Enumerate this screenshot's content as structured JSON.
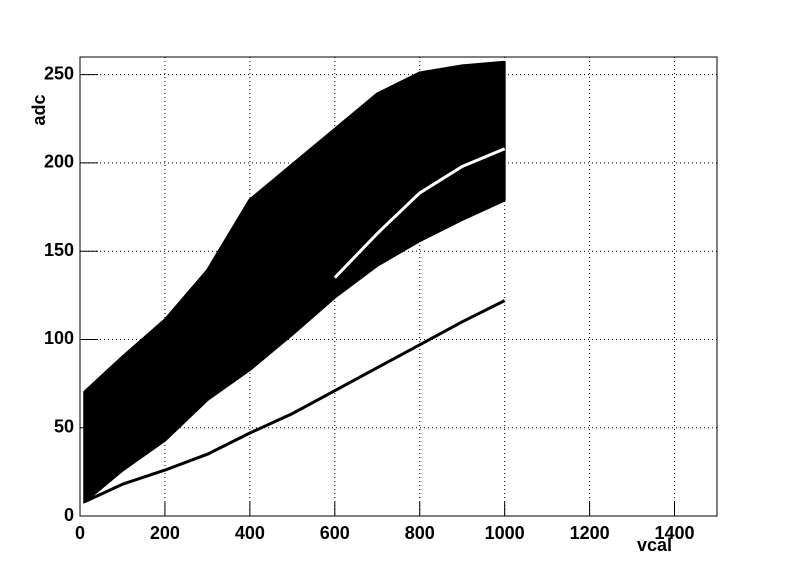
{
  "chart_data": {
    "type": "area",
    "x_label": "vcal",
    "y_label": "adc",
    "x": [
      10,
      100,
      200,
      300,
      400,
      500,
      600,
      700,
      800,
      900,
      1000
    ],
    "series": [
      {
        "color": "#000000",
        "fill_to": 1,
        "values": [
          70,
          90,
          111,
          139,
          179,
          199,
          219,
          239,
          251,
          255,
          257
        ]
      },
      {
        "color": "#000000",
        "values": [
          8,
          26,
          43,
          66,
          83,
          103,
          124,
          142,
          156,
          168,
          179
        ]
      },
      {
        "color": "#000000",
        "values": [
          8,
          18,
          26,
          35,
          47,
          58,
          71,
          84,
          97,
          110,
          122
        ]
      },
      {
        "color": "#ffffff",
        "values": [
          null,
          null,
          null,
          null,
          null,
          null,
          135,
          160,
          183,
          198,
          208
        ]
      }
    ],
    "xlim": [
      0,
      1500
    ],
    "ylim": [
      0,
      260
    ],
    "xticks": [
      0,
      200,
      400,
      600,
      800,
      1000,
      1200,
      1400
    ],
    "yticks": [
      0,
      50,
      100,
      150,
      200,
      250
    ],
    "grid": true
  }
}
